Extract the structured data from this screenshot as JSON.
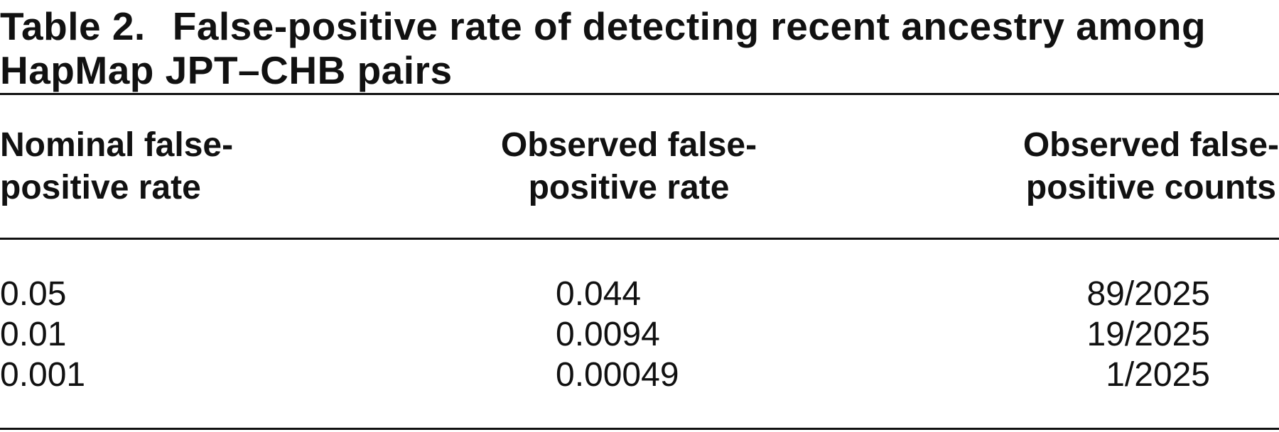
{
  "caption": {
    "label": "Table 2.",
    "title": "False-positive rate of detecting recent ancestry among HapMap JPT–CHB pairs"
  },
  "table": {
    "headers": [
      {
        "line1": "Nominal false-",
        "line2": "positive rate"
      },
      {
        "line1": "Observed false-",
        "line2": "positive rate"
      },
      {
        "line1": "Observed false-",
        "line2": "positive counts"
      }
    ],
    "rows": [
      {
        "nominal": "0.05",
        "observed_rate": "0.044",
        "observed_counts": "89/2025"
      },
      {
        "nominal": "0.01",
        "observed_rate": "0.0094",
        "observed_counts": "19/2025"
      },
      {
        "nominal": "0.001",
        "observed_rate": "0.00049",
        "observed_counts": "1/2025"
      }
    ]
  }
}
